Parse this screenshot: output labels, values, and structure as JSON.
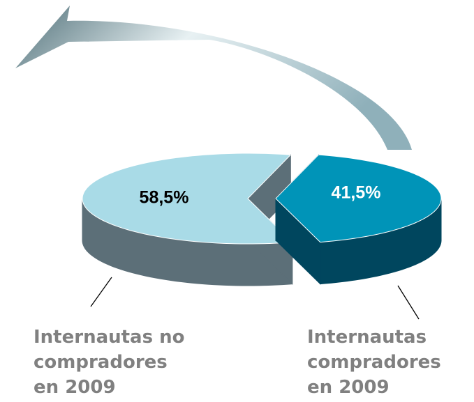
{
  "chart_data": {
    "type": "pie3d",
    "categories": [
      [
        "Internautas no",
        "compradores",
        "en 2009"
      ],
      [
        "Internautas",
        "compradores",
        "en 2009"
      ]
    ],
    "values": [
      58.5,
      41.5
    ],
    "value_labels": [
      "58,5%",
      "41,5%"
    ],
    "colors": [
      "#a9dbe7",
      "#0094b8"
    ],
    "side_colors": [
      "#5c6f78",
      "#00465e"
    ],
    "label_colors": [
      "#000000",
      "#ffffff"
    ]
  }
}
